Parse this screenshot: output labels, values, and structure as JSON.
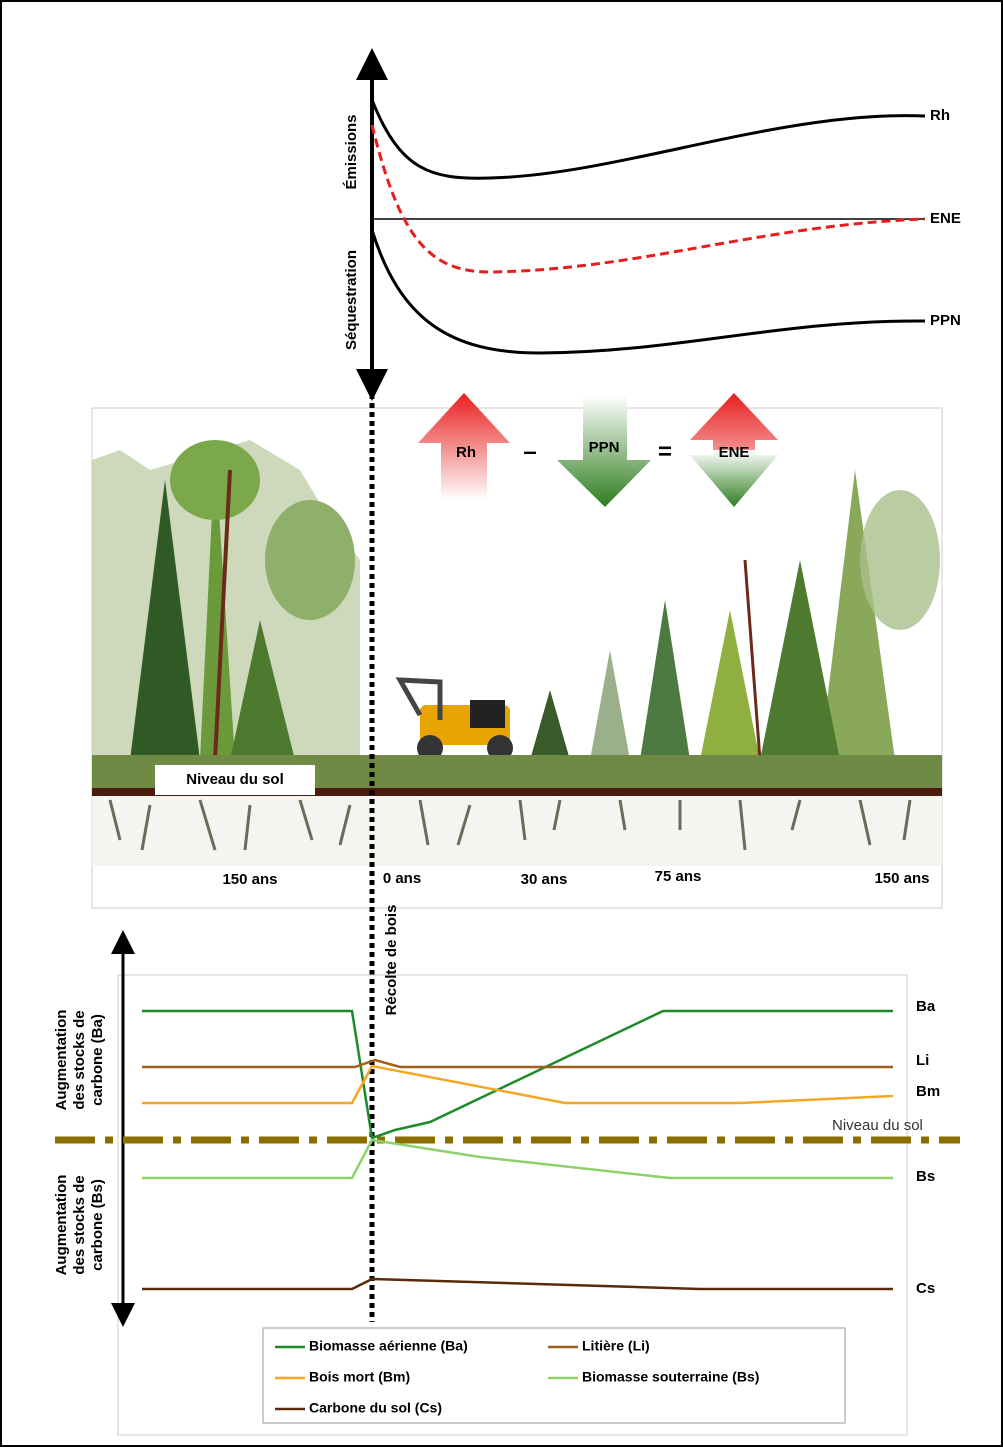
{
  "top_panel": {
    "y_labels": [
      "Émissions",
      "Séquestration"
    ],
    "curve_labels": [
      "Rh",
      "ENE",
      "PPN"
    ]
  },
  "equation": {
    "terms": [
      "Rh",
      "–",
      "PPN",
      "=",
      "ENE"
    ]
  },
  "forest_panel": {
    "ground_label": "Niveau du sol",
    "ages": [
      "150 ans",
      "0 ans",
      "30 ans",
      "75 ans",
      "150 ans"
    ],
    "harvest_label": "Récolte de bois"
  },
  "bottom_panel": {
    "y_labels": [
      [
        "Augmentation",
        "des stocks de",
        "carbone (Ba)"
      ],
      [
        "Augmentation",
        "des stocks de",
        "carbone (Bs)"
      ]
    ],
    "curve_labels": [
      "Ba",
      "Li",
      "Bm",
      "Bs",
      "Cs"
    ],
    "ground_label": "Niveau du sol"
  },
  "legend": {
    "items": [
      "Biomasse aérienne (Ba)",
      "Litière (Li)",
      "Bois mort (Bm)",
      "Biomasse souterraine (Bs)",
      "Carbone du sol (Cs)"
    ]
  }
}
